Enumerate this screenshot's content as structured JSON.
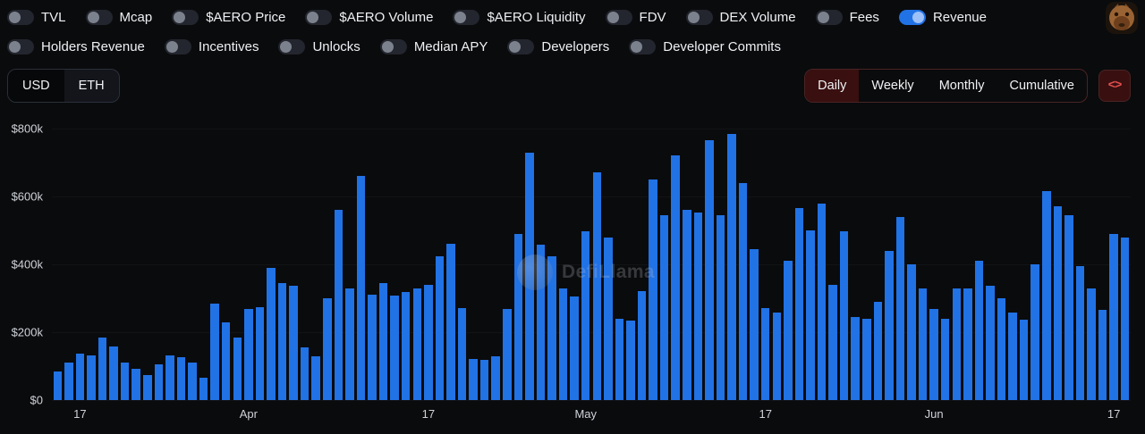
{
  "header": {
    "metric_toggles_row1": [
      {
        "label": "TVL",
        "on": false
      },
      {
        "label": "Mcap",
        "on": false
      },
      {
        "label": "$AERO Price",
        "on": false
      },
      {
        "label": "$AERO Volume",
        "on": false
      },
      {
        "label": "$AERO Liquidity",
        "on": false
      },
      {
        "label": "FDV",
        "on": false
      },
      {
        "label": "DEX Volume",
        "on": false
      },
      {
        "label": "Fees",
        "on": false
      },
      {
        "label": "Revenue",
        "on": true
      }
    ],
    "metric_toggles_row2": [
      {
        "label": "Holders Revenue",
        "on": false
      },
      {
        "label": "Incentives",
        "on": false
      },
      {
        "label": "Unlocks",
        "on": false
      },
      {
        "label": "Median APY",
        "on": false
      },
      {
        "label": "Developers",
        "on": false
      },
      {
        "label": "Developer Commits",
        "on": false
      }
    ]
  },
  "controls": {
    "currency_options": [
      "USD",
      "ETH"
    ],
    "currency_active": "USD",
    "interval_options": [
      "Daily",
      "Weekly",
      "Monthly",
      "Cumulative"
    ],
    "interval_active": "Daily",
    "embed_button_glyph": "<>"
  },
  "watermark_text": "DefiLlama",
  "colors": {
    "background": "#0a0b0d",
    "bar": "#2172e5",
    "toggle_on": "#2172e5",
    "accent_red": "#e35050",
    "axis_text": "#cfd2d8"
  },
  "chart_data": {
    "type": "bar",
    "series_name": "Revenue",
    "interval": "Daily",
    "currency": "USD",
    "y_unit": "USD thousands",
    "ylim": [
      0,
      800
    ],
    "grid": false,
    "legend": "none",
    "bar_color": "#2172e5",
    "y_ticks": [
      {
        "value": 800,
        "label": "$800k"
      },
      {
        "value": 600,
        "label": "$600k"
      },
      {
        "value": 400,
        "label": "$400k"
      },
      {
        "value": 200,
        "label": "$200k"
      },
      {
        "value": 0,
        "label": "$0"
      }
    ],
    "x_ticks": [
      {
        "index": 2,
        "label": "17"
      },
      {
        "index": 17,
        "label": "Apr"
      },
      {
        "index": 33,
        "label": "17"
      },
      {
        "index": 47,
        "label": "May"
      },
      {
        "index": 63,
        "label": "17"
      },
      {
        "index": 78,
        "label": "Jun"
      },
      {
        "index": 94,
        "label": "17"
      }
    ],
    "values": [
      84,
      110,
      137,
      132,
      184,
      158,
      110,
      92,
      74,
      105,
      132,
      126,
      110,
      66,
      285,
      228,
      185,
      268,
      273,
      390,
      345,
      338,
      155,
      128,
      300,
      560,
      330,
      660,
      310,
      345,
      308,
      318,
      330,
      340,
      425,
      460,
      270,
      120,
      118,
      130,
      268,
      490,
      730,
      458,
      425,
      330,
      305,
      498,
      670,
      480,
      240,
      235,
      320,
      650,
      545,
      720,
      560,
      553,
      765,
      545,
      785,
      640,
      445,
      270,
      258,
      410,
      565,
      500,
      580,
      340,
      498,
      245,
      240,
      290,
      440,
      540,
      400,
      330,
      268,
      240,
      328,
      330,
      410,
      338,
      300,
      258,
      238,
      400,
      615,
      570,
      545,
      395,
      330,
      265,
      490,
      478
    ]
  }
}
